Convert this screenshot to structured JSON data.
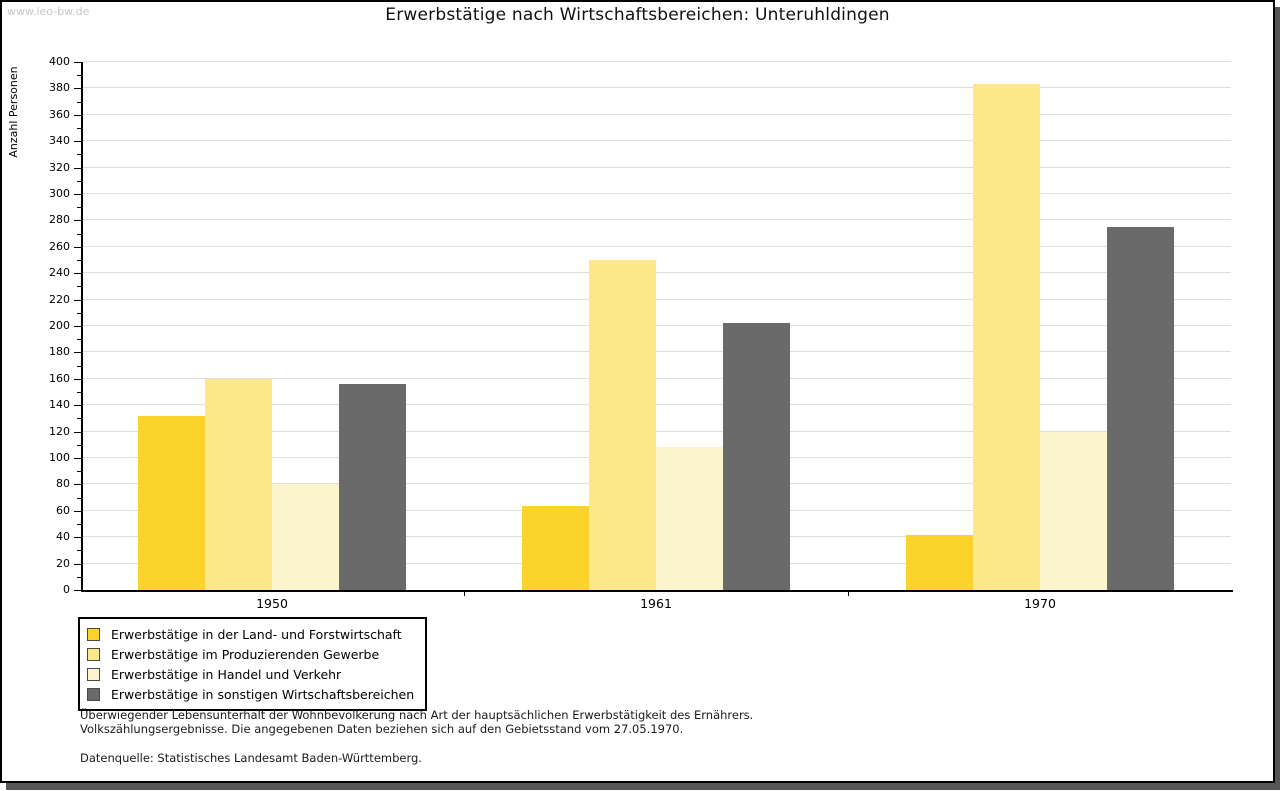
{
  "watermark": "www.leo-bw.de",
  "chart_data": {
    "type": "bar",
    "title": "Erwerbstätige nach Wirtschaftsbereichen: Unteruhldingen",
    "xlabel": "",
    "ylabel": "Anzahl Personen",
    "ylim": [
      0,
      400
    ],
    "ytick_step": 20,
    "minor_tick_step": 10,
    "grid": true,
    "legend_position": "bottom-left",
    "categories": [
      "1950",
      "1961",
      "1970"
    ],
    "series": [
      {
        "name": "Erwerbstätige in der Land- und Forstwirtschaft",
        "color": "#FCD32B",
        "values": [
          132,
          64,
          42
        ]
      },
      {
        "name": "Erwerbstätige im Produzierenden Gewerbe",
        "color": "#FBE88A",
        "values": [
          160,
          250,
          383
        ]
      },
      {
        "name": "Erwerbstätige in Handel und Verkehr",
        "color": "#FCF4CD",
        "values": [
          80,
          108,
          120
        ]
      },
      {
        "name": "Erwerbstätige in sonstigen Wirtschaftsbereichen",
        "color": "#6A6A6A",
        "values": [
          156,
          202,
          275
        ]
      }
    ]
  },
  "footnotes": {
    "line1": "Überwiegender Lebensunterhalt der Wohnbevölkerung nach Art der hauptsächlichen Erwerbstätigkeit des Ernährers.",
    "line2": "Volkszählungsergebnisse. Die angegebenen Daten beziehen sich auf den Gebietsstand vom 27.05.1970.",
    "source": "Datenquelle: Statistisches Landesamt Baden-Württemberg."
  },
  "colors": {
    "frame_border": "#000000",
    "drop_shadow": "#565656",
    "gridline": "#DEDEDE",
    "watermark": "#C6C6C6"
  }
}
